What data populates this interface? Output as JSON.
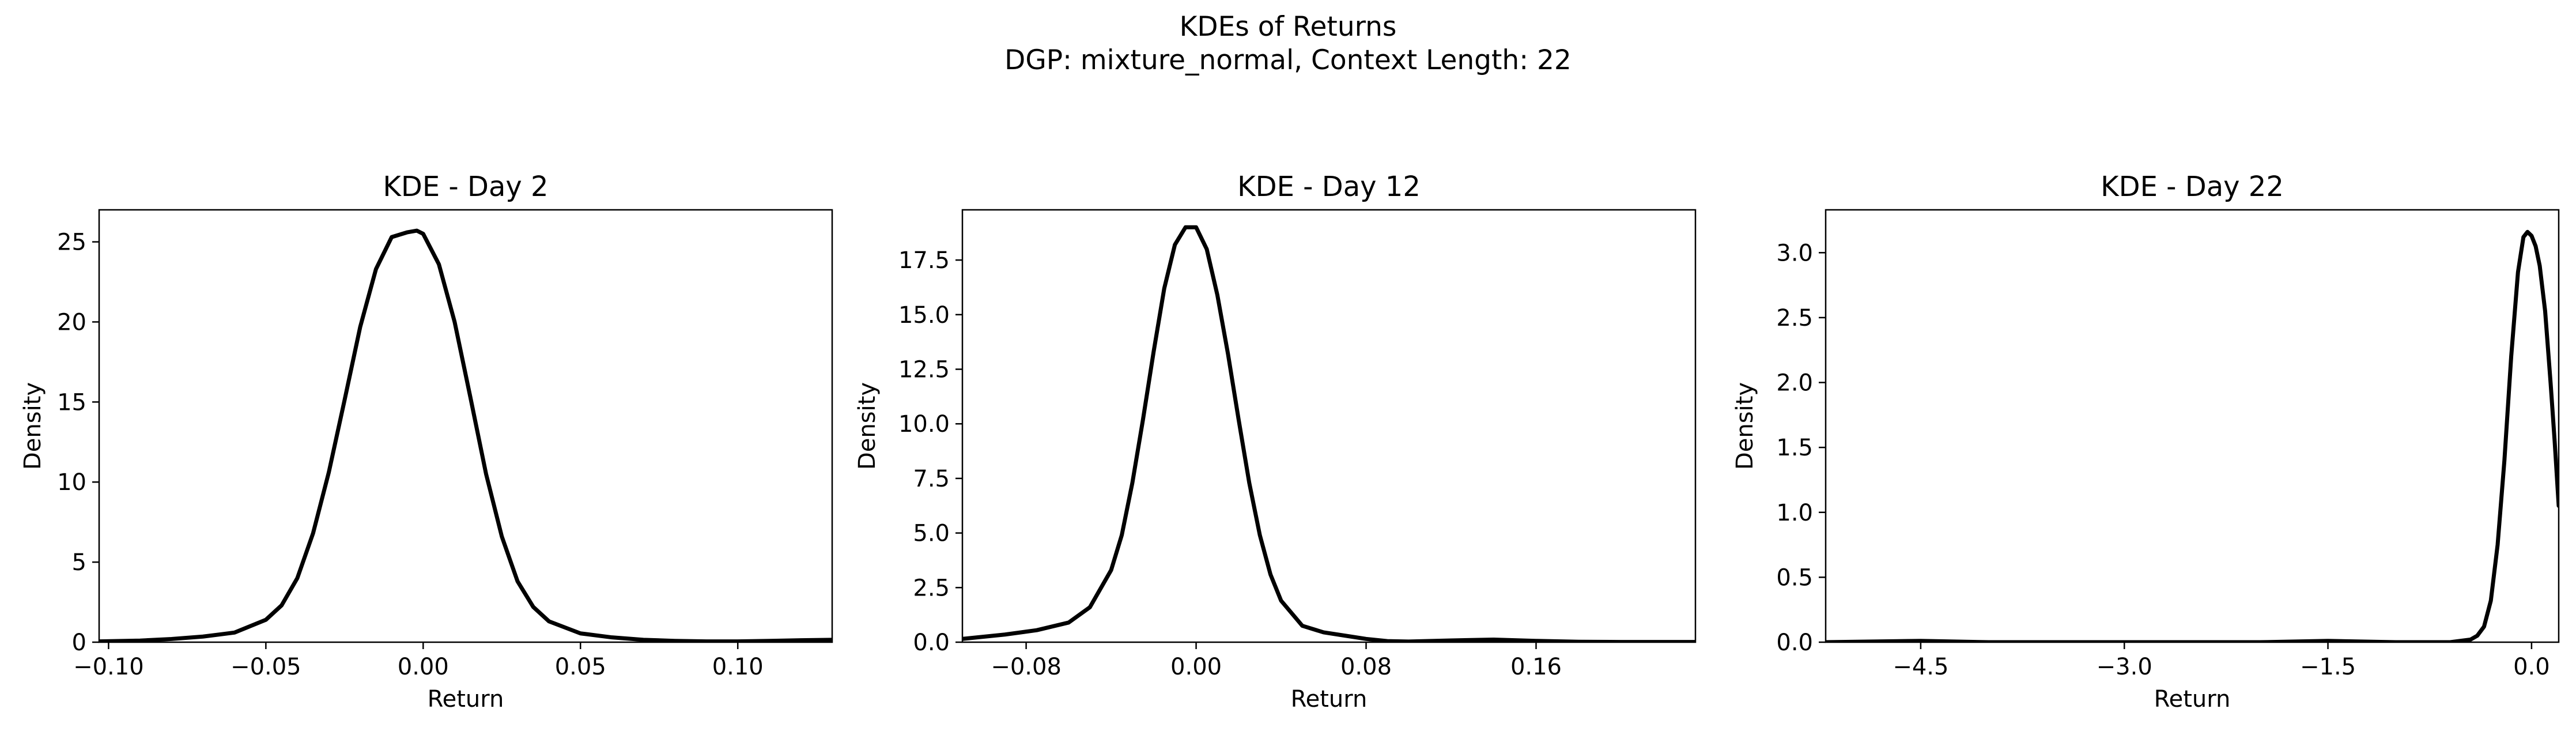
{
  "figure": {
    "suptitle_line1": "KDEs of Returns",
    "suptitle_line2": "DGP: mixture_normal, Context Length: 22"
  },
  "chart_data": [
    {
      "type": "line",
      "title": "KDE - Day 2",
      "xlabel": "Return",
      "ylabel": "Density",
      "xlim": [
        -0.103,
        0.13
      ],
      "ylim": [
        0,
        27
      ],
      "xticks": [
        -0.1,
        -0.05,
        0.0,
        0.05,
        0.1
      ],
      "xtick_labels": [
        "−0.10",
        "−0.05",
        "0.00",
        "0.05",
        "0.10"
      ],
      "yticks": [
        0,
        5,
        10,
        15,
        20,
        25
      ],
      "ytick_labels": [
        "0",
        "5",
        "10",
        "15",
        "20",
        "25"
      ],
      "grid": false,
      "legend": "none",
      "line_color": "#000000",
      "series": [
        {
          "x": [
            -0.103,
            -0.09,
            -0.08,
            -0.07,
            -0.06,
            -0.05,
            -0.045,
            -0.04,
            -0.035,
            -0.03,
            -0.025,
            -0.02,
            -0.015,
            -0.01,
            -0.005,
            -0.002,
            0.0,
            0.005,
            0.01,
            0.015,
            0.02,
            0.025,
            0.03,
            0.035,
            0.04,
            0.05,
            0.06,
            0.07,
            0.08,
            0.09,
            0.1,
            0.11,
            0.12,
            0.13
          ],
          "y": [
            0.05,
            0.1,
            0.2,
            0.35,
            0.6,
            1.4,
            2.3,
            4.0,
            6.8,
            10.6,
            15.1,
            19.7,
            23.3,
            25.3,
            25.6,
            25.7,
            25.5,
            23.6,
            20.0,
            15.3,
            10.5,
            6.6,
            3.8,
            2.2,
            1.3,
            0.55,
            0.3,
            0.15,
            0.08,
            0.05,
            0.05,
            0.08,
            0.12,
            0.15
          ]
        }
      ]
    },
    {
      "type": "line",
      "title": "KDE - Day 12",
      "xlabel": "Return",
      "ylabel": "Density",
      "xlim": [
        -0.11,
        0.235
      ],
      "ylim": [
        0,
        19.8
      ],
      "xticks": [
        -0.08,
        0.0,
        0.08,
        0.16
      ],
      "xtick_labels": [
        "−0.08",
        "0.00",
        "0.08",
        "0.16"
      ],
      "yticks": [
        0,
        2.5,
        5,
        7.5,
        10,
        12.5,
        15,
        17.5
      ],
      "ytick_labels": [
        "0.0",
        "2.5",
        "5.0",
        "7.5",
        "10.0",
        "12.5",
        "15.0",
        "17.5"
      ],
      "grid": false,
      "legend": "none",
      "line_color": "#000000",
      "series": [
        {
          "x": [
            -0.11,
            -0.09,
            -0.075,
            -0.06,
            -0.05,
            -0.04,
            -0.035,
            -0.03,
            -0.025,
            -0.02,
            -0.015,
            -0.01,
            -0.005,
            0.0,
            0.005,
            0.01,
            0.015,
            0.02,
            0.025,
            0.03,
            0.035,
            0.04,
            0.05,
            0.06,
            0.07,
            0.08,
            0.09,
            0.1,
            0.12,
            0.14,
            0.16,
            0.18,
            0.2,
            0.235
          ],
          "y": [
            0.15,
            0.35,
            0.55,
            0.9,
            1.6,
            3.3,
            4.9,
            7.3,
            10.2,
            13.3,
            16.2,
            18.2,
            19.0,
            19.0,
            18.0,
            15.9,
            13.2,
            10.2,
            7.3,
            4.9,
            3.1,
            1.9,
            0.75,
            0.45,
            0.3,
            0.15,
            0.05,
            0.03,
            0.08,
            0.12,
            0.06,
            0.02,
            0.01,
            0.01
          ]
        }
      ]
    },
    {
      "type": "line",
      "title": "KDE - Day 22",
      "xlabel": "Return",
      "ylabel": "Density",
      "xlim": [
        -5.2,
        0.2
      ],
      "ylim": [
        0,
        3.33
      ],
      "xticks": [
        -4.5,
        -3.0,
        -1.5,
        0.0
      ],
      "xtick_labels": [
        "−4.5",
        "−3.0",
        "−1.5",
        "0.0"
      ],
      "yticks": [
        0,
        0.5,
        1.0,
        1.5,
        2.0,
        2.5,
        3.0
      ],
      "ytick_labels": [
        "0.0",
        "0.5",
        "1.0",
        "1.5",
        "2.0",
        "2.5",
        "3.0"
      ],
      "grid": false,
      "legend": "none",
      "line_color": "#000000",
      "series": [
        {
          "x": [
            -5.2,
            -4.5,
            -4.0,
            -3.5,
            -3.0,
            -2.5,
            -2.0,
            -1.5,
            -1.0,
            -0.6,
            -0.45,
            -0.4,
            -0.35,
            -0.3,
            -0.25,
            -0.2,
            -0.15,
            -0.1,
            -0.06,
            -0.03,
            0.0,
            0.03,
            0.06,
            0.1,
            0.14,
            0.17,
            0.2
          ],
          "y": [
            0.0,
            0.01,
            0.0,
            0.0,
            0.0,
            0.0,
            0.0,
            0.01,
            0.0,
            0.0,
            0.02,
            0.05,
            0.12,
            0.32,
            0.75,
            1.4,
            2.2,
            2.85,
            3.12,
            3.16,
            3.13,
            3.05,
            2.9,
            2.55,
            2.0,
            1.55,
            1.05
          ]
        }
      ]
    }
  ]
}
